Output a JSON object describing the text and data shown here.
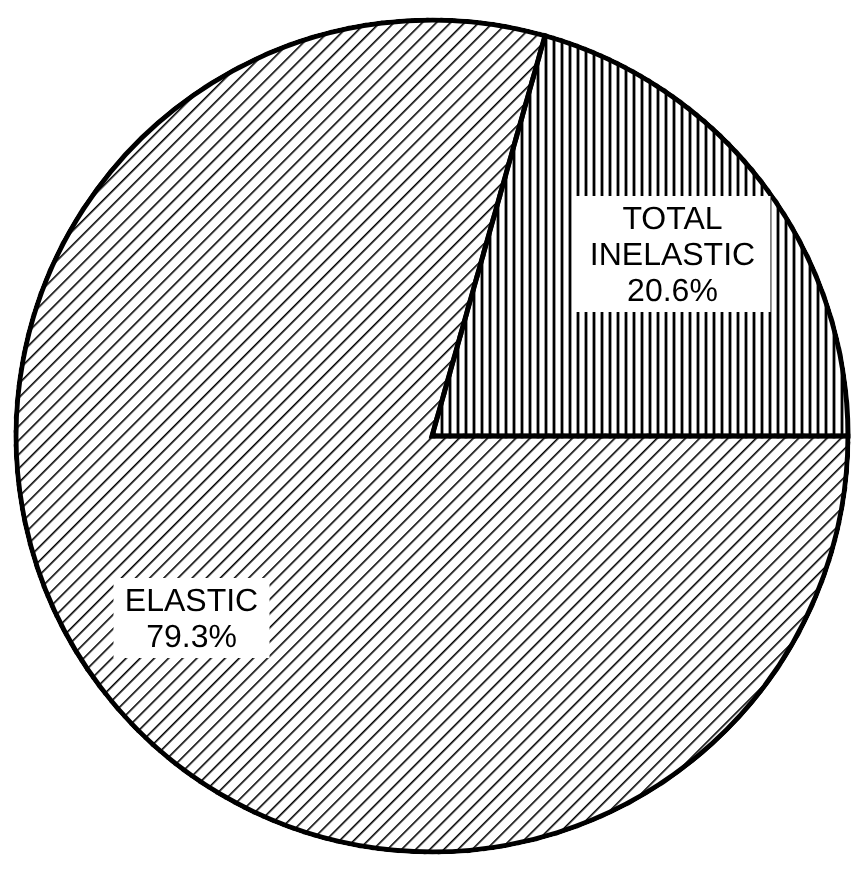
{
  "chart_data": {
    "type": "pie",
    "categories": [
      "ELASTIC",
      "TOTAL INELASTIC"
    ],
    "values": [
      79.3,
      20.6
    ],
    "value_labels": [
      "79.3%",
      "20.6%"
    ],
    "colors": [
      "#000000",
      "#000000"
    ]
  }
}
